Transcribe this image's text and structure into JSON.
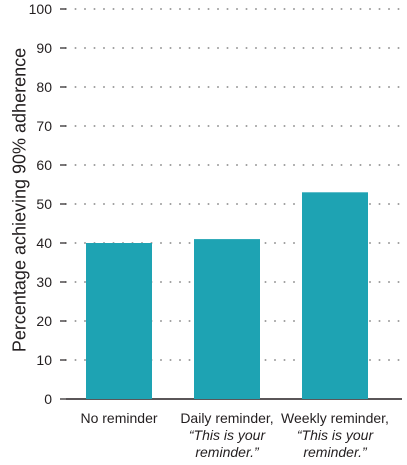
{
  "chart_data": {
    "type": "bar",
    "ylabel": "Percentage achieving 90% adherence",
    "xlabel": "",
    "title": "",
    "ylim": [
      0,
      100
    ],
    "yticks": [
      0,
      10,
      20,
      30,
      40,
      50,
      60,
      70,
      80,
      90,
      100
    ],
    "grid": "horizontal-dotted",
    "bar_color": "#1ea3b3",
    "categories": [
      {
        "name": "No reminder",
        "lines": [
          "No reminder"
        ],
        "italic_lines": []
      },
      {
        "name": "Daily reminder, “This is your reminder.”",
        "lines": [
          "Daily reminder,"
        ],
        "italic_lines": [
          "“This is your",
          "reminder.”"
        ]
      },
      {
        "name": "Weekly reminder, “This is your reminder.”",
        "lines": [
          "Weekly reminder,"
        ],
        "italic_lines": [
          "“This is your",
          "reminder.”"
        ]
      }
    ],
    "values": [
      40,
      41,
      53
    ]
  }
}
